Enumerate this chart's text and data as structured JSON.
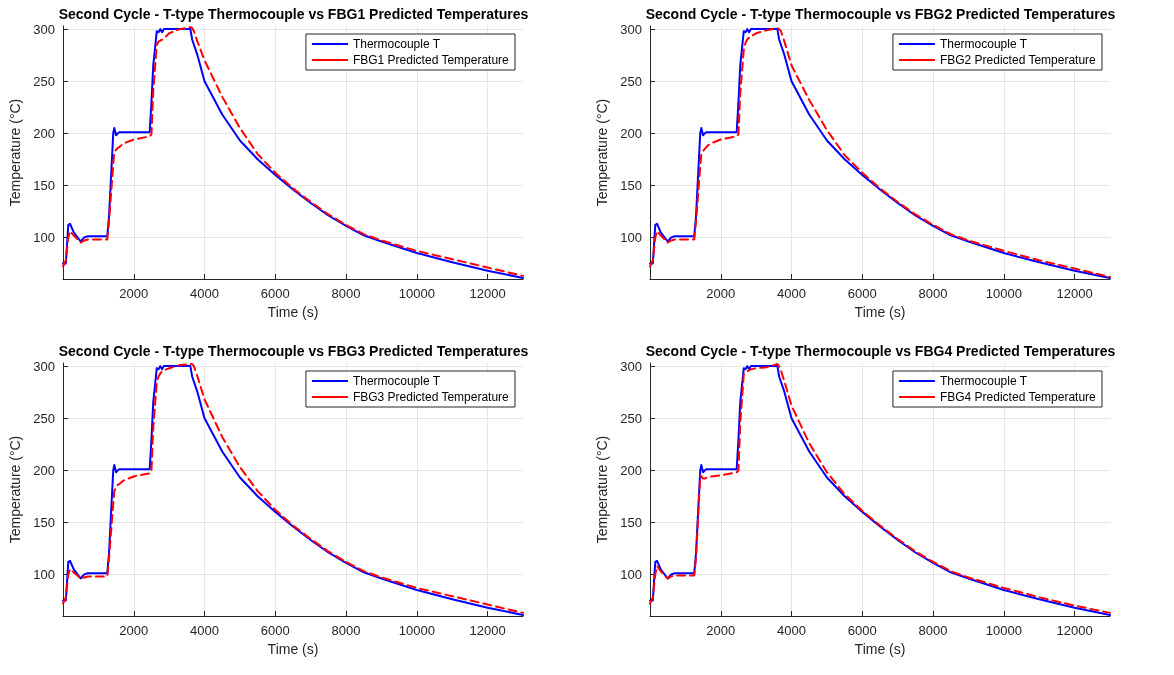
{
  "chart_data": [
    {
      "type": "line",
      "title": "Second Cycle - T-type Thermocouple vs FBG1 Predicted Temperatures",
      "xlabel": "Time (s)",
      "ylabel": "Temperature (°C)",
      "xlim": [
        0,
        13000
      ],
      "ylim": [
        60,
        303
      ],
      "xticks": [
        2000,
        4000,
        6000,
        8000,
        10000,
        12000
      ],
      "yticks": [
        100,
        150,
        200,
        250,
        300
      ],
      "grid": true,
      "legend": "top right",
      "marker": "none",
      "x": [
        0,
        80,
        150,
        200,
        300,
        500,
        600,
        700,
        1250,
        1300,
        1420,
        1450,
        1500,
        1550,
        1600,
        1700,
        2000,
        2450,
        2500,
        2550,
        2650,
        2700,
        2750,
        2800,
        2850,
        3000,
        3300,
        3600,
        3650,
        3700,
        3800,
        4000,
        4500,
        5000,
        5500,
        6000,
        6500,
        7000,
        7500,
        8000,
        8500,
        9000,
        10000,
        11000,
        12000,
        13000
      ],
      "series": [
        {
          "name": "Thermocouple T",
          "color": "#0000ff",
          "line_style": "solid",
          "values": [
            75,
            75,
            112,
            113,
            105,
            96,
            100,
            101,
            101,
            120,
            200,
            205,
            198,
            200,
            201,
            201,
            201,
            201,
            230,
            265,
            298,
            297,
            300,
            297,
            300,
            300,
            300,
            300,
            290,
            285,
            275,
            250,
            218,
            193,
            175,
            160,
            146,
            133,
            121,
            111,
            102,
            96,
            85,
            76,
            68,
            61
          ]
        },
        {
          "name": "FBG1 Predicted Temperature",
          "color": "#ff0000",
          "line_style": "dashed",
          "values": [
            72,
            78,
            100,
            106,
            102,
            95,
            97,
            98,
            98,
            115,
            170,
            182,
            184,
            186,
            187,
            190,
            194,
            197,
            199,
            240,
            285,
            288,
            289,
            290,
            291,
            296,
            300,
            302,
            301,
            298,
            288,
            270,
            235,
            205,
            180,
            162,
            147,
            134,
            122,
            112,
            103,
            97,
            87,
            79,
            71,
            63
          ]
        }
      ]
    },
    {
      "type": "line",
      "title": "Second Cycle - T-type Thermocouple vs FBG2 Predicted Temperatures",
      "xlabel": "Time (s)",
      "ylabel": "Temperature (°C)",
      "xlim": [
        0,
        13000
      ],
      "ylim": [
        60,
        303
      ],
      "xticks": [
        2000,
        4000,
        6000,
        8000,
        10000,
        12000
      ],
      "yticks": [
        100,
        150,
        200,
        250,
        300
      ],
      "grid": true,
      "legend": "top right",
      "marker": "none",
      "x": [
        0,
        80,
        150,
        200,
        300,
        500,
        600,
        700,
        1250,
        1300,
        1420,
        1450,
        1500,
        1550,
        1600,
        1700,
        2000,
        2450,
        2500,
        2550,
        2650,
        2700,
        2750,
        2800,
        2850,
        3000,
        3300,
        3600,
        3650,
        3700,
        3800,
        4000,
        4500,
        5000,
        5500,
        6000,
        6500,
        7000,
        7500,
        8000,
        8500,
        9000,
        10000,
        11000,
        12000,
        13000
      ],
      "series": [
        {
          "name": "Thermocouple T",
          "color": "#0000ff",
          "line_style": "solid",
          "values": [
            75,
            75,
            112,
            113,
            105,
            96,
            100,
            101,
            101,
            120,
            200,
            205,
            198,
            200,
            201,
            201,
            201,
            201,
            230,
            265,
            298,
            297,
            300,
            297,
            300,
            300,
            300,
            300,
            290,
            285,
            275,
            250,
            218,
            193,
            175,
            160,
            146,
            133,
            121,
            111,
            102,
            96,
            85,
            76,
            68,
            61
          ]
        },
        {
          "name": "FBG2 Predicted Temperature",
          "color": "#ff0000",
          "line_style": "dashed",
          "values": [
            72,
            78,
            100,
            106,
            102,
            95,
            97,
            98,
            98,
            115,
            168,
            180,
            183,
            185,
            187,
            190,
            194,
            197,
            199,
            238,
            280,
            287,
            290,
            292,
            293,
            296,
            299,
            301,
            300,
            298,
            288,
            265,
            232,
            203,
            179,
            162,
            147,
            134,
            122,
            112,
            103,
            97,
            87,
            78,
            70,
            62
          ]
        }
      ]
    },
    {
      "type": "line",
      "title": "Second Cycle - T-type Thermocouple vs FBG3 Predicted Temperatures",
      "xlabel": "Time (s)",
      "ylabel": "Temperature (°C)",
      "xlim": [
        0,
        13000
      ],
      "ylim": [
        60,
        303
      ],
      "xticks": [
        2000,
        4000,
        6000,
        8000,
        10000,
        12000
      ],
      "yticks": [
        100,
        150,
        200,
        250,
        300
      ],
      "grid": true,
      "legend": "top right",
      "marker": "none",
      "x": [
        0,
        80,
        150,
        200,
        300,
        500,
        600,
        700,
        1250,
        1300,
        1420,
        1450,
        1500,
        1550,
        1600,
        1700,
        2000,
        2450,
        2500,
        2550,
        2650,
        2700,
        2750,
        2800,
        2850,
        3000,
        3300,
        3600,
        3650,
        3700,
        3800,
        4000,
        4500,
        5000,
        5500,
        6000,
        6500,
        7000,
        7500,
        8000,
        8500,
        9000,
        10000,
        11000,
        12000,
        13000
      ],
      "series": [
        {
          "name": "Thermocouple T",
          "color": "#0000ff",
          "line_style": "solid",
          "values": [
            75,
            75,
            112,
            113,
            105,
            96,
            100,
            101,
            101,
            120,
            200,
            205,
            198,
            200,
            201,
            201,
            201,
            201,
            230,
            265,
            298,
            297,
            300,
            297,
            300,
            300,
            300,
            300,
            290,
            285,
            275,
            250,
            218,
            193,
            175,
            160,
            146,
            133,
            121,
            111,
            102,
            96,
            85,
            76,
            68,
            61
          ]
        },
        {
          "name": "FBG3 Predicted Temperature",
          "color": "#ff0000",
          "line_style": "dashed",
          "values": [
            72,
            78,
            100,
            105,
            102,
            96,
            97,
            98,
            98,
            115,
            168,
            180,
            184,
            186,
            187,
            190,
            194,
            197,
            199,
            240,
            285,
            290,
            293,
            295,
            296,
            298,
            301,
            302,
            302,
            300,
            290,
            268,
            232,
            203,
            180,
            162,
            147,
            134,
            122,
            112,
            103,
            97,
            87,
            79,
            71,
            63
          ]
        }
      ]
    },
    {
      "type": "line",
      "title": "Second Cycle - T-type Thermocouple vs FBG4 Predicted Temperatures",
      "xlabel": "Time (s)",
      "ylabel": "Temperature (°C)",
      "xlim": [
        0,
        13000
      ],
      "ylim": [
        60,
        303
      ],
      "xticks": [
        2000,
        4000,
        6000,
        8000,
        10000,
        12000
      ],
      "yticks": [
        100,
        150,
        200,
        250,
        300
      ],
      "grid": true,
      "legend": "top right",
      "marker": "none",
      "x": [
        0,
        80,
        150,
        200,
        300,
        500,
        600,
        700,
        1250,
        1300,
        1420,
        1450,
        1500,
        1550,
        1600,
        1700,
        2000,
        2450,
        2500,
        2550,
        2650,
        2700,
        2750,
        2800,
        2850,
        3000,
        3300,
        3600,
        3650,
        3700,
        3800,
        4000,
        4500,
        5000,
        5500,
        6000,
        6500,
        7000,
        7500,
        8000,
        8500,
        9000,
        10000,
        11000,
        12000,
        13000
      ],
      "series": [
        {
          "name": "Thermocouple T",
          "color": "#0000ff",
          "line_style": "solid",
          "values": [
            75,
            75,
            112,
            113,
            105,
            96,
            100,
            101,
            101,
            120,
            200,
            205,
            198,
            200,
            201,
            201,
            201,
            201,
            230,
            265,
            298,
            297,
            300,
            297,
            300,
            300,
            300,
            300,
            290,
            285,
            275,
            250,
            218,
            193,
            175,
            160,
            146,
            133,
            121,
            111,
            102,
            96,
            85,
            76,
            68,
            61
          ]
        },
        {
          "name": "FBG4 Predicted Temperature",
          "color": "#ff0000",
          "line_style": "dashed",
          "values": [
            72,
            78,
            100,
            108,
            103,
            96,
            98,
            99,
            99,
            116,
            195,
            194,
            192,
            192,
            193,
            194,
            195,
            198,
            200,
            245,
            292,
            294,
            295,
            296,
            297,
            298,
            299,
            302,
            300,
            296,
            285,
            262,
            226,
            198,
            177,
            161,
            147,
            134,
            122,
            112,
            103,
            97,
            87,
            78,
            70,
            63
          ]
        }
      ]
    }
  ]
}
